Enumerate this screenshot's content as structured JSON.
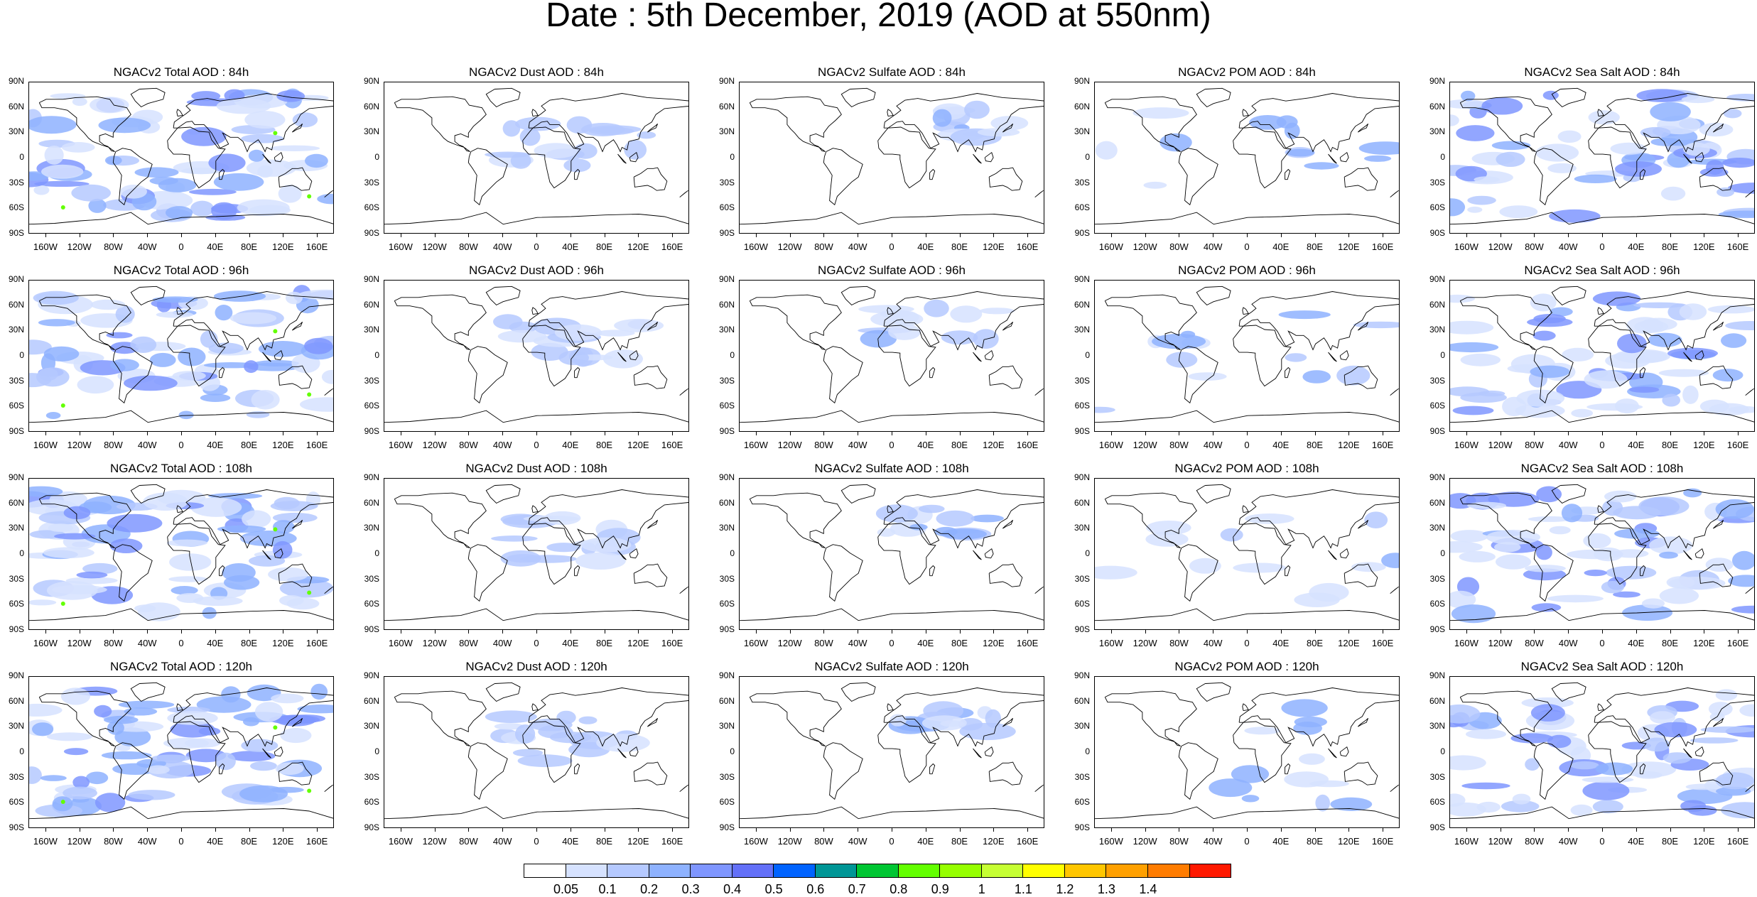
{
  "title": "Date : 5th December, 2019 (AOD at 550nm)",
  "lat_labels": [
    "90N",
    "60N",
    "30N",
    "0",
    "30S",
    "60S",
    "90S"
  ],
  "lon_labels": [
    "160W",
    "120W",
    "80W",
    "40W",
    "0",
    "40E",
    "80E",
    "120E",
    "160E"
  ],
  "rows": [
    [
      "NGACv2 Total AOD : 84h",
      "NGACv2 Dust AOD : 84h",
      "NGACv2 Sulfate AOD : 84h",
      "NGACv2 POM AOD : 84h",
      "NGACv2 Sea Salt AOD : 84h"
    ],
    [
      "NGACv2 Total AOD : 96h",
      "NGACv2 Dust AOD : 96h",
      "NGACv2 Sulfate AOD : 96h",
      "NGACv2 POM AOD : 96h",
      "NGACv2 Sea Salt AOD : 96h"
    ],
    [
      "NGACv2 Total AOD : 108h",
      "NGACv2 Dust AOD : 108h",
      "NGACv2 Sulfate AOD : 108h",
      "NGACv2 POM AOD : 108h",
      "NGACv2 Sea Salt AOD : 108h"
    ],
    [
      "NGACv2 Total AOD : 120h",
      "NGACv2 Dust AOD : 120h",
      "NGACv2 Sulfate AOD : 120h",
      "NGACv2 POM AOD : 120h",
      "NGACv2 Sea Salt  AOD : 120h"
    ]
  ],
  "colorbar": {
    "labels": [
      "0.05",
      "0.1",
      "0.2",
      "0.3",
      "0.4",
      "0.5",
      "0.6",
      "0.7",
      "0.8",
      "0.9",
      "1",
      "1.1",
      "1.2",
      "1.3",
      "1.4"
    ],
    "colors": [
      "#ffffff",
      "#d6e2ff",
      "#b5c9ff",
      "#8eb2ff",
      "#7f96ff",
      "#6370f8",
      "#0063ff",
      "#009696",
      "#00c633",
      "#63ff00",
      "#96ff00",
      "#c6ff33",
      "#ffff00",
      "#ffc600",
      "#ffa000",
      "#ff7c00",
      "#ff1900"
    ]
  }
}
